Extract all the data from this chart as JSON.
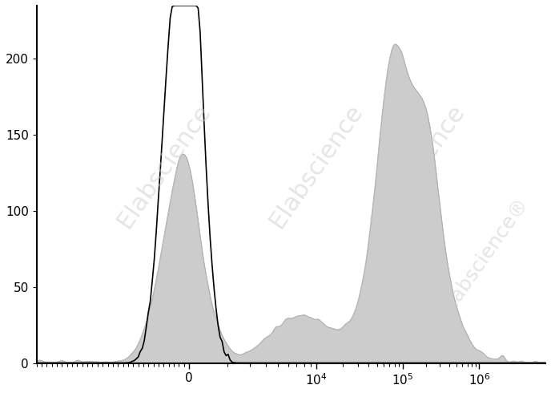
{
  "title": "",
  "xlabel": "",
  "ylabel": "",
  "ylim": [
    0,
    235
  ],
  "yticks": [
    0,
    50,
    100,
    150,
    200
  ],
  "background_color": "#ffffff",
  "fill_color": "#cccccc",
  "line_color": "#000000",
  "watermark": "Elabscience",
  "watermark_color": "#cccccc",
  "watermark_fontsize": 22
}
